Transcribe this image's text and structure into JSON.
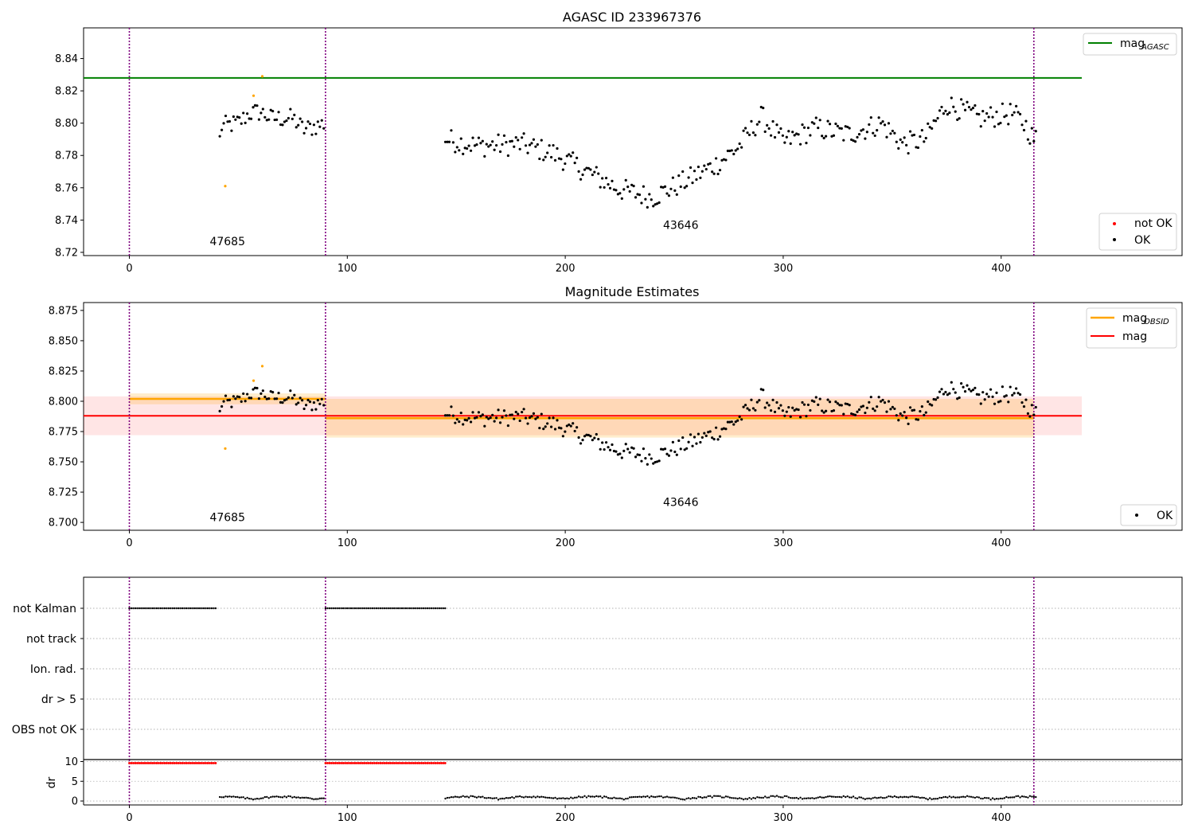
{
  "chart_data": [
    {
      "type": "scatter",
      "title": "AGASC ID 233967376",
      "xlabel": "",
      "ylabel": "",
      "xlim": [
        -21,
        483
      ],
      "ylim": [
        8.718,
        8.859
      ],
      "x_ticks": [
        0,
        100,
        200,
        300,
        400
      ],
      "y_ticks": [
        8.72,
        8.74,
        8.76,
        8.78,
        8.8,
        8.82,
        8.84
      ],
      "y_tick_labels": [
        "8.72",
        "8.74",
        "8.76",
        "8.78",
        "8.80",
        "8.82",
        "8.84"
      ],
      "obs_boundaries": [
        0,
        90,
        415
      ],
      "obs_labels": [
        {
          "text": "47685",
          "x": 45,
          "y": 8.7245
        },
        {
          "text": "43646",
          "x": 253,
          "y": 8.7345
        }
      ],
      "hlines": [
        {
          "name": "mag",
          "sub": "AGASC",
          "y": 8.828,
          "x_range": [
            -21,
            437
          ],
          "color": "#008000"
        }
      ],
      "legends": [
        {
          "position": "top-right",
          "entries": [
            {
              "label": "mag",
              "sub": "AGASC",
              "kind": "line",
              "color": "#008000"
            }
          ]
        },
        {
          "position": "bottom-right",
          "entries": [
            {
              "label": "not OK",
              "kind": "dot",
              "color": "#ff0000"
            },
            {
              "label": "OK",
              "kind": "dot",
              "color": "#000000"
            }
          ]
        }
      ],
      "outliers": [
        {
          "x": 44,
          "y": 8.761
        },
        {
          "x": 57,
          "y": 8.817
        },
        {
          "x": 61,
          "y": 8.829
        }
      ]
    },
    {
      "type": "scatter",
      "title": "Magnitude Estimates",
      "xlabel": "",
      "ylabel": "",
      "xlim": [
        -21,
        483
      ],
      "ylim": [
        8.6935,
        8.8815
      ],
      "x_ticks": [
        0,
        100,
        200,
        300,
        400
      ],
      "y_ticks": [
        8.7,
        8.725,
        8.75,
        8.775,
        8.8,
        8.825,
        8.85,
        8.875
      ],
      "y_tick_labels": [
        "8.700",
        "8.725",
        "8.750",
        "8.775",
        "8.800",
        "8.825",
        "8.850",
        "8.875"
      ],
      "obs_boundaries": [
        0,
        90,
        415
      ],
      "obs_labels": [
        {
          "text": "47685",
          "x": 45,
          "y": 8.701
        },
        {
          "text": "43646",
          "x": 253,
          "y": 8.7135
        }
      ],
      "mag_obsid": [
        {
          "x": [
            0,
            90
          ],
          "y": 8.802,
          "band": [
            8.7975,
            8.8065
          ]
        },
        {
          "x": [
            90,
            415
          ],
          "y": 8.786,
          "band": [
            8.77,
            8.802
          ]
        }
      ],
      "mag": {
        "y": 8.788,
        "band": [
          8.772,
          8.804
        ],
        "x_range": [
          -21,
          437
        ]
      },
      "legends": [
        {
          "position": "top-right",
          "entries": [
            {
              "label": "mag",
              "sub": "OBSID",
              "kind": "line",
              "color": "#ffa500"
            },
            {
              "label": "mag",
              "sub": "",
              "kind": "line",
              "color": "#ff0000"
            }
          ]
        },
        {
          "position": "bottom-right",
          "entries": [
            {
              "label": "OK",
              "kind": "dot",
              "color": "#000000"
            }
          ]
        }
      ],
      "outliers": [
        {
          "x": 44,
          "y": 8.761
        },
        {
          "x": 57,
          "y": 8.817
        },
        {
          "x": 61,
          "y": 8.829
        }
      ]
    },
    {
      "type": "scatter",
      "title": "",
      "xlim": [
        -21,
        483
      ],
      "x_ticks": [
        0,
        100,
        200,
        300,
        400
      ],
      "categories": [
        "not Kalman",
        "not track",
        "Ion. rad.",
        "dr > 5",
        "OBS not OK"
      ],
      "obs_boundaries": [
        0,
        90,
        415
      ],
      "flag_ranges": [
        {
          "category": "not Kalman",
          "x": [
            0,
            40
          ]
        },
        {
          "category": "not Kalman",
          "x": [
            90,
            145
          ]
        }
      ]
    },
    {
      "type": "scatter",
      "title": "",
      "xlim": [
        -21,
        483
      ],
      "ylim": [
        -1,
        10.5
      ],
      "ylabel": "dr",
      "x_ticks": [
        0,
        100,
        200,
        300,
        400
      ],
      "x_tick_labels": [
        "0",
        "100",
        "200",
        "300",
        "400"
      ],
      "y_ticks": [
        0,
        5,
        10
      ],
      "y_tick_labels": [
        "0",
        "5",
        "10"
      ],
      "obs_boundaries": [
        0,
        90,
        415
      ],
      "capped_ranges": [
        {
          "x": [
            0,
            40
          ],
          "y": 9.6
        },
        {
          "x": [
            90,
            145
          ],
          "y": 9.6
        }
      ]
    }
  ]
}
